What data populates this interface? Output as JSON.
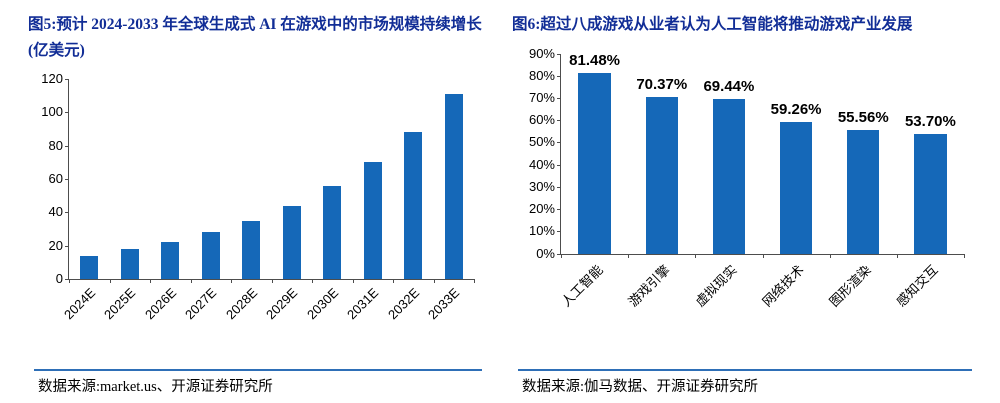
{
  "colors": {
    "bar": "#1568b8",
    "title": "#112d96",
    "divider": "#2e6fb7",
    "axis": "#4d4d4d"
  },
  "figures": [
    {
      "label": "图5",
      "title_full": "图5:预计 2024-2033 年全球生成式 AI 在游戏中的市场规模持续增长(亿美元)",
      "source": "数据来源:market.us、开源证券研究所"
    },
    {
      "label": "图6",
      "title_full": "图6:超过八成游戏从业者认为人工智能将推动游戏产业发展",
      "source": "数据来源:伽马数据、开源证券研究所"
    }
  ],
  "chart_data": [
    {
      "type": "bar",
      "title": "预计 2024-2033 年全球生成式 AI 在游戏中的市场规模持续增长(亿美元)",
      "categories": [
        "2024E",
        "2025E",
        "2026E",
        "2027E",
        "2028E",
        "2029E",
        "2030E",
        "2031E",
        "2032E",
        "2033E"
      ],
      "values": [
        14,
        18,
        22,
        28,
        35,
        44,
        56,
        70,
        88,
        111
      ],
      "ylim": [
        0,
        120
      ],
      "ytick_step": 20,
      "ytick_suffix": "",
      "show_value_labels": false,
      "value_labels": [],
      "bar_width_pct": 45,
      "grid": false,
      "legend": "none",
      "xlabel": "",
      "ylabel": ""
    },
    {
      "type": "bar",
      "title": "超过八成游戏从业者认为人工智能将推动游戏产业发展",
      "categories": [
        "人工智能",
        "游戏引擎",
        "虚拟现实",
        "网络技术",
        "图形渲染",
        "感知交互"
      ],
      "values": [
        81.48,
        70.37,
        69.44,
        59.26,
        55.56,
        53.7
      ],
      "value_labels": [
        "81.48%",
        "70.37%",
        "69.44%",
        "59.26%",
        "55.56%",
        "53.70%"
      ],
      "ylim": [
        0,
        90
      ],
      "ytick_step": 10,
      "ytick_suffix": "%",
      "show_value_labels": true,
      "bar_width_pct": 48,
      "grid": false,
      "legend": "none",
      "xlabel": "",
      "ylabel": ""
    }
  ]
}
